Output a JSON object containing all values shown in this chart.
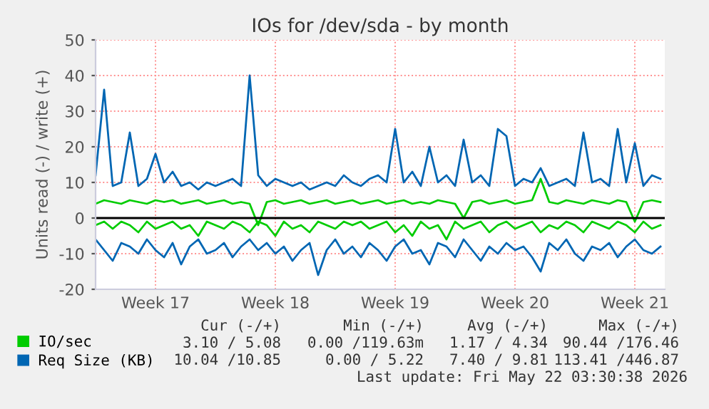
{
  "chart_data": {
    "type": "line",
    "title": "IOs for /dev/sda - by month",
    "ylabel": "Units read (-) / write (+)",
    "categories": [
      null,
      null,
      null,
      null,
      null,
      null,
      null,
      "Week 17",
      null,
      null,
      null,
      null,
      null,
      null,
      null,
      null,
      null,
      null,
      null,
      null,
      null,
      "Week 18",
      null,
      null,
      null,
      null,
      null,
      null,
      null,
      null,
      null,
      null,
      null,
      null,
      null,
      "Week 19",
      null,
      null,
      null,
      null,
      null,
      null,
      null,
      null,
      null,
      null,
      null,
      null,
      null,
      "Week 20",
      null,
      null,
      null,
      null,
      null,
      null,
      null,
      null,
      null,
      null,
      null,
      null,
      null,
      "Week 21",
      null,
      null,
      null
    ],
    "series": [
      {
        "name": "IO/sec",
        "color": "#00cc00",
        "values": [
          4,
          5,
          4.5,
          4,
          5,
          4.5,
          4,
          5,
          4.5,
          5,
          4,
          4.5,
          5,
          4,
          4.5,
          5,
          4,
          4.5,
          4,
          -2,
          4.5,
          5,
          4,
          4.5,
          5,
          4,
          4.5,
          5,
          4,
          4.5,
          5,
          4,
          4.5,
          5,
          4,
          4.5,
          5,
          4,
          4.5,
          4,
          5,
          4.5,
          4,
          0,
          4.5,
          5,
          4,
          4.5,
          5,
          4,
          4.5,
          5,
          11,
          4.5,
          4,
          5,
          4.5,
          4,
          5,
          4.5,
          4,
          5,
          4.5,
          -1,
          4.5,
          5,
          4.5
        ]
      },
      {
        "color": "#00cc00",
        "values": [
          -2,
          -1,
          -3,
          -1,
          -2,
          -4,
          -1,
          -3,
          -2,
          -1,
          -3,
          -2,
          -5,
          -1,
          -2,
          -3,
          -1,
          -2,
          -4,
          -1,
          -2,
          -5,
          -1,
          -3,
          -2,
          -4,
          -1,
          -2,
          -3,
          -1,
          -2,
          -1,
          -3,
          -2,
          -1,
          -4,
          -2,
          -5,
          -1,
          -3,
          -2,
          -6,
          -1,
          -3,
          -2,
          -1,
          -4,
          -2,
          -1,
          -3,
          -2,
          -1,
          -4,
          -2,
          -3,
          -1,
          -2,
          -4,
          -1,
          -2,
          -3,
          -1,
          -2,
          -4,
          -1,
          -3,
          -2
        ]
      },
      {
        "name": "Req Size (KB)",
        "color": "#0066b3",
        "values": [
          12,
          36,
          9,
          10,
          24,
          9,
          11,
          18,
          10,
          13,
          9,
          10,
          8,
          10,
          9,
          10,
          11,
          9,
          40,
          12,
          9,
          11,
          10,
          9,
          10,
          8,
          9,
          10,
          9,
          12,
          10,
          9,
          11,
          12,
          10,
          25,
          10,
          13,
          9,
          20,
          10,
          12,
          9,
          22,
          10,
          12,
          9,
          25,
          23,
          9,
          11,
          10,
          14,
          9,
          10,
          11,
          9,
          24,
          10,
          11,
          9,
          25,
          10,
          21,
          9,
          12,
          11
        ]
      },
      {
        "color": "#0066b3",
        "values": [
          -6,
          -9,
          -12,
          -7,
          -8,
          -10,
          -6,
          -9,
          -11,
          -7,
          -13,
          -8,
          -6,
          -10,
          -9,
          -7,
          -11,
          -8,
          -6,
          -9,
          -7,
          -10,
          -8,
          -12,
          -9,
          -7,
          -16,
          -9,
          -6,
          -10,
          -8,
          -11,
          -7,
          -9,
          -12,
          -8,
          -6,
          -10,
          -9,
          -13,
          -7,
          -8,
          -11,
          -6,
          -9,
          -12,
          -8,
          -10,
          -7,
          -9,
          -8,
          -11,
          -15,
          -7,
          -9,
          -6,
          -10,
          -12,
          -8,
          -9,
          -7,
          -11,
          -8,
          -6,
          -9,
          -10,
          -8
        ]
      }
    ],
    "ylim": [
      -20,
      50
    ],
    "yticks": [
      -20,
      -10,
      0,
      10,
      20,
      30,
      40,
      50
    ],
    "ref_lines": [
      {
        "axis": "y",
        "value": 0,
        "color": "#000000"
      }
    ],
    "grid": true,
    "legend": "bottom left",
    "annotations": [
      "Cur (-/+)",
      "Min (-/+)",
      "Avg (-/+)",
      "Max (-/+)",
      "3.10 / 5.08",
      "0.00 /119.63m",
      "1.17 / 4.34",
      "90.44 /176.46",
      "10.04 /10.85",
      "0.00 / 5.22",
      "7.40 / 9.81",
      "113.41 /446.87",
      "Last update: Fri May 22 03:30:38 2026"
    ]
  }
}
